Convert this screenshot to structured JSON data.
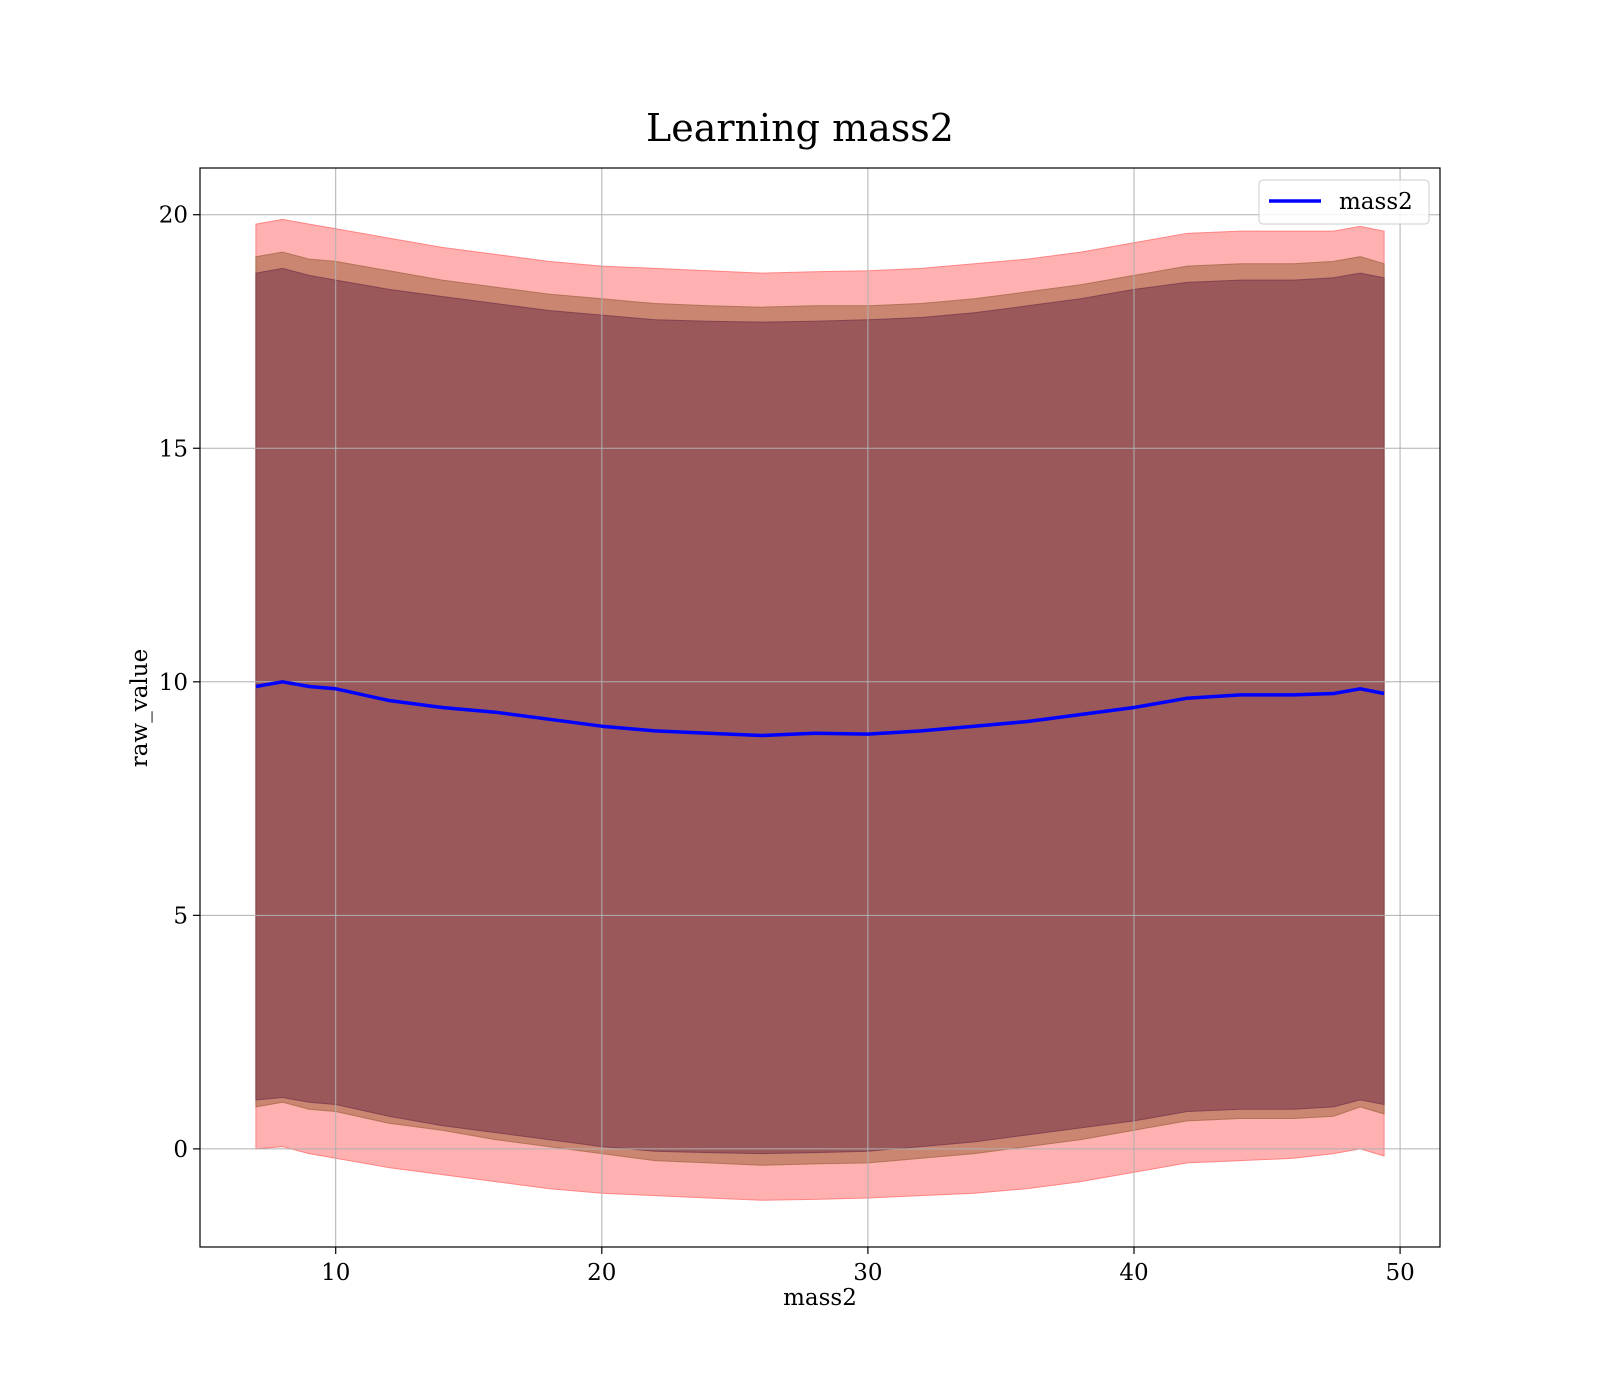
{
  "chart_data": {
    "type": "line",
    "title": "Learning mass2",
    "xlabel": "mass2",
    "ylabel": "raw_value",
    "xlim": [
      4.9,
      51.5
    ],
    "ylim": [
      -2.1,
      21.0
    ],
    "xticks": [
      10,
      20,
      30,
      40,
      50
    ],
    "yticks": [
      0,
      5,
      10,
      15,
      20
    ],
    "grid": true,
    "legend": {
      "placement": "top-right",
      "entries": [
        "mass2"
      ]
    },
    "colors": {
      "line": "#0000ff",
      "band_outer": "#ff6f70",
      "band_middle": "#a66a48",
      "band_inner": "#7a3a4c",
      "grid": "#b0b0b0"
    },
    "x": [
      7.0,
      8.0,
      9.0,
      10.0,
      12.0,
      14.0,
      16.0,
      18.0,
      20.0,
      22.0,
      24.0,
      26.0,
      28.0,
      30.0,
      32.0,
      34.0,
      36.0,
      38.0,
      40.0,
      42.0,
      44.0,
      46.0,
      47.5,
      48.5,
      49.4
    ],
    "series": [
      {
        "name": "mass2",
        "values": [
          9.9,
          10.0,
          9.9,
          9.85,
          9.6,
          9.45,
          9.35,
          9.2,
          9.05,
          8.95,
          8.9,
          8.85,
          8.9,
          8.88,
          8.95,
          9.05,
          9.15,
          9.3,
          9.45,
          9.65,
          9.72,
          9.72,
          9.75,
          9.85,
          9.75
        ]
      }
    ],
    "bands": [
      {
        "label": "outer",
        "upper": [
          19.8,
          19.9,
          19.8,
          19.7,
          19.5,
          19.3,
          19.15,
          19.0,
          18.9,
          18.85,
          18.8,
          18.75,
          18.78,
          18.8,
          18.85,
          18.95,
          19.05,
          19.2,
          19.4,
          19.6,
          19.65,
          19.65,
          19.65,
          19.75,
          19.65
        ],
        "lower": [
          0.0,
          0.05,
          -0.1,
          -0.2,
          -0.4,
          -0.55,
          -0.7,
          -0.85,
          -0.95,
          -1.0,
          -1.05,
          -1.1,
          -1.08,
          -1.05,
          -1.0,
          -0.95,
          -0.85,
          -0.7,
          -0.5,
          -0.3,
          -0.25,
          -0.2,
          -0.1,
          0.0,
          -0.15
        ]
      },
      {
        "label": "middle",
        "upper": [
          19.1,
          19.2,
          19.05,
          19.0,
          18.8,
          18.6,
          18.45,
          18.3,
          18.2,
          18.1,
          18.05,
          18.02,
          18.05,
          18.05,
          18.1,
          18.2,
          18.35,
          18.5,
          18.7,
          18.9,
          18.95,
          18.95,
          19.0,
          19.1,
          18.95
        ],
        "lower": [
          0.9,
          1.0,
          0.85,
          0.8,
          0.55,
          0.4,
          0.2,
          0.05,
          -0.1,
          -0.25,
          -0.3,
          -0.35,
          -0.32,
          -0.3,
          -0.2,
          -0.1,
          0.05,
          0.2,
          0.4,
          0.6,
          0.65,
          0.65,
          0.7,
          0.9,
          0.75
        ]
      },
      {
        "label": "inner",
        "upper": [
          18.75,
          18.85,
          18.7,
          18.6,
          18.4,
          18.25,
          18.1,
          17.95,
          17.85,
          17.75,
          17.72,
          17.7,
          17.72,
          17.75,
          17.8,
          17.9,
          18.05,
          18.2,
          18.4,
          18.55,
          18.6,
          18.6,
          18.65,
          18.75,
          18.65
        ],
        "lower": [
          1.05,
          1.1,
          1.0,
          0.95,
          0.7,
          0.5,
          0.35,
          0.2,
          0.05,
          -0.05,
          -0.08,
          -0.1,
          -0.08,
          -0.05,
          0.05,
          0.15,
          0.3,
          0.45,
          0.6,
          0.8,
          0.85,
          0.85,
          0.9,
          1.05,
          0.95
        ]
      }
    ]
  }
}
